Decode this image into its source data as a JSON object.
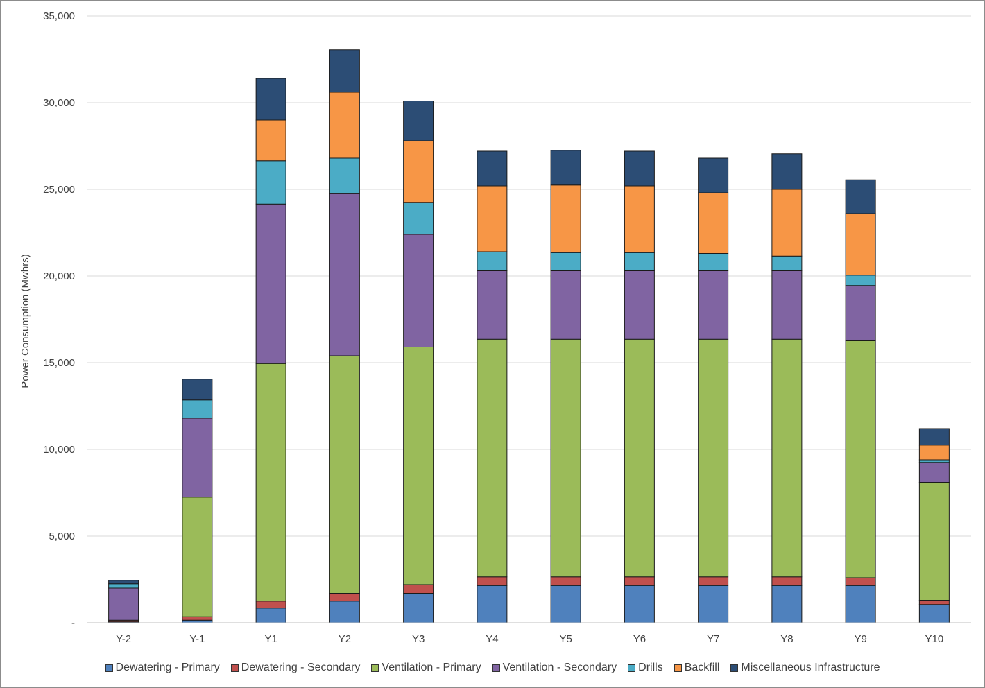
{
  "chart_data": {
    "type": "bar",
    "stacked": true,
    "title": "",
    "xlabel": "",
    "ylabel": "Power Consumption (Mwhrs)",
    "ylim": [
      0,
      35000
    ],
    "yticks": [
      0,
      5000,
      10000,
      15000,
      20000,
      25000,
      30000,
      35000
    ],
    "ytick_labels": [
      "-",
      "5,000",
      "10,000",
      "15,000",
      "20,000",
      "25,000",
      "30,000",
      "35,000"
    ],
    "grid": true,
    "legend_position": "bottom",
    "categories": [
      "Y-2",
      "Y-1",
      "Y1",
      "Y2",
      "Y3",
      "Y4",
      "Y5",
      "Y6",
      "Y7",
      "Y8",
      "Y9",
      "Y10"
    ],
    "series": [
      {
        "name": "Dewatering - Primary",
        "color": "#4f81bd",
        "values": [
          50,
          150,
          850,
          1250,
          1700,
          2150,
          2150,
          2150,
          2150,
          2150,
          2150,
          1050
        ]
      },
      {
        "name": "Dewatering - Secondary",
        "color": "#c0504d",
        "values": [
          100,
          200,
          400,
          450,
          500,
          500,
          500,
          500,
          500,
          500,
          450,
          250
        ]
      },
      {
        "name": "Ventilation - Primary",
        "color": "#9bbb59",
        "values": [
          0,
          6900,
          13700,
          13700,
          13700,
          13700,
          13700,
          13700,
          13700,
          13700,
          13700,
          6800
        ]
      },
      {
        "name": "Ventilation - Secondary",
        "color": "#8064a2",
        "values": [
          1850,
          4550,
          9200,
          9350,
          6500,
          3950,
          3950,
          3950,
          3950,
          3950,
          3150,
          1150
        ]
      },
      {
        "name": "Drills",
        "color": "#4bacc6",
        "values": [
          250,
          1050,
          2500,
          2050,
          1850,
          1100,
          1050,
          1050,
          1000,
          850,
          600,
          150
        ]
      },
      {
        "name": "Backfill",
        "color": "#f79646",
        "values": [
          0,
          0,
          2350,
          3800,
          3550,
          3800,
          3900,
          3850,
          3500,
          3850,
          3550,
          850
        ]
      },
      {
        "name": "Miscellaneous Infrastructure",
        "color": "#2c4d75",
        "values": [
          200,
          1200,
          2400,
          2450,
          2300,
          2000,
          2000,
          2000,
          2000,
          2050,
          1950,
          950
        ]
      }
    ]
  }
}
